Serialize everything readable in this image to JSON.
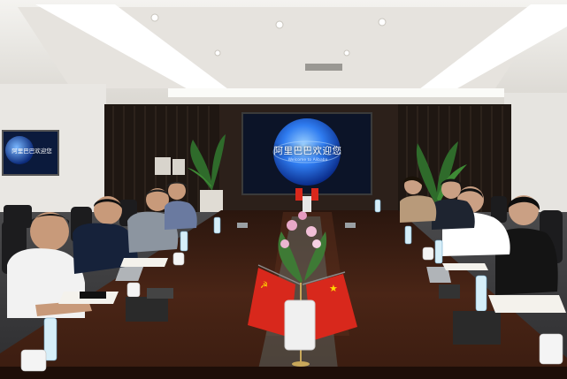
{
  "scene": {
    "main_screen": {
      "title": "阿里巴巴欢迎您",
      "subtitle": "Welcome to Alibaba"
    },
    "side_screen": {
      "title": "阿里巴巴欢迎您"
    },
    "colors": {
      "ceiling": "#eceae6",
      "wall_panel": "#2c201a",
      "table": "#3a1f14",
      "flag_red": "#d8281c",
      "screen_blue": "#1a5ad8"
    }
  }
}
